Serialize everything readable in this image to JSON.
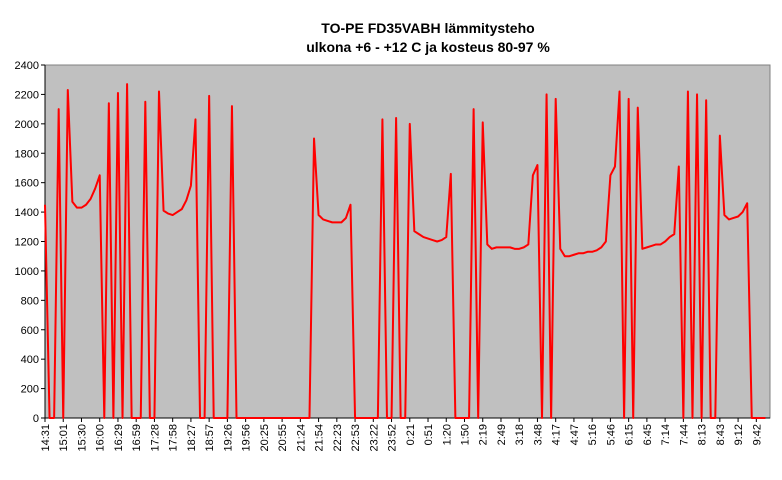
{
  "chart_data": {
    "type": "line",
    "title": "TO-PE FD35VABH lämmitysteho",
    "subtitle": "ulkona +6 - +12 C ja kosteus 80-97 %",
    "categories": [
      "14:31",
      null,
      null,
      null,
      "15:01",
      null,
      null,
      null,
      "15:30",
      null,
      null,
      null,
      "16:00",
      null,
      null,
      null,
      "16:29",
      null,
      null,
      null,
      "16:59",
      null,
      null,
      null,
      "17:28",
      null,
      null,
      null,
      "17:58",
      null,
      null,
      null,
      "18:27",
      null,
      null,
      null,
      "18:57",
      null,
      null,
      null,
      "19:26",
      null,
      null,
      null,
      "19:56",
      null,
      null,
      null,
      "20:25",
      null,
      null,
      null,
      "20:55",
      null,
      null,
      null,
      "21:24",
      null,
      null,
      null,
      "21:54",
      null,
      null,
      null,
      "22:23",
      null,
      null,
      null,
      "22:53",
      null,
      null,
      null,
      "23:22",
      null,
      null,
      null,
      "23:52",
      null,
      null,
      null,
      "0:21",
      null,
      null,
      null,
      "0:51",
      null,
      null,
      null,
      "1:20",
      null,
      null,
      null,
      "1:50",
      null,
      null,
      null,
      "2:19",
      null,
      null,
      null,
      "2:49",
      null,
      null,
      null,
      "3:18",
      null,
      null,
      null,
      "3:48",
      null,
      null,
      null,
      "4:17",
      null,
      null,
      null,
      "4:47",
      null,
      null,
      null,
      "5:16",
      null,
      null,
      null,
      "5:46",
      null,
      null,
      null,
      "6:15",
      null,
      null,
      null,
      "6:45",
      null,
      null,
      null,
      "7:14",
      null,
      null,
      null,
      "7:44",
      null,
      null,
      null,
      "8:13",
      null,
      null,
      null,
      "8:43",
      null,
      null,
      null,
      "9:12",
      null,
      null,
      null,
      "9:42",
      null,
      null
    ],
    "values": [
      1450,
      0,
      0,
      2100,
      0,
      2230,
      1470,
      1430,
      1430,
      1450,
      1490,
      1560,
      1650,
      0,
      2140,
      0,
      2210,
      0,
      2270,
      0,
      0,
      0,
      2150,
      0,
      0,
      2220,
      1410,
      1390,
      1380,
      1400,
      1420,
      1480,
      1580,
      2030,
      0,
      0,
      2190,
      0,
      0,
      0,
      0,
      2120,
      0,
      0,
      0,
      0,
      0,
      0,
      0,
      0,
      0,
      0,
      0,
      0,
      0,
      0,
      0,
      0,
      0,
      1900,
      1380,
      1350,
      1340,
      1330,
      1330,
      1330,
      1360,
      1450,
      0,
      0,
      0,
      0,
      0,
      0,
      2030,
      0,
      0,
      2040,
      0,
      0,
      2000,
      1270,
      1250,
      1230,
      1220,
      1210,
      1200,
      1210,
      1230,
      1660,
      0,
      0,
      0,
      0,
      2100,
      0,
      2010,
      1180,
      1150,
      1160,
      1160,
      1160,
      1160,
      1150,
      1150,
      1160,
      1180,
      1650,
      1720,
      0,
      2200,
      0,
      2170,
      1150,
      1100,
      1100,
      1110,
      1120,
      1120,
      1130,
      1130,
      1140,
      1160,
      1200,
      1650,
      1710,
      2220,
      0,
      2170,
      0,
      2110,
      1150,
      1160,
      1170,
      1180,
      1180,
      1200,
      1230,
      1250,
      1710,
      0,
      2220,
      0,
      2200,
      0,
      2160,
      0,
      0,
      1920,
      1380,
      1350,
      1360,
      1370,
      1400,
      1460,
      0,
      0,
      0,
      0
    ],
    "color": "#ff0000",
    "ylim": [
      0,
      2400
    ],
    "yticks": [
      0,
      200,
      400,
      600,
      800,
      1000,
      1200,
      1400,
      1600,
      1800,
      2000,
      2200,
      2400
    ]
  }
}
